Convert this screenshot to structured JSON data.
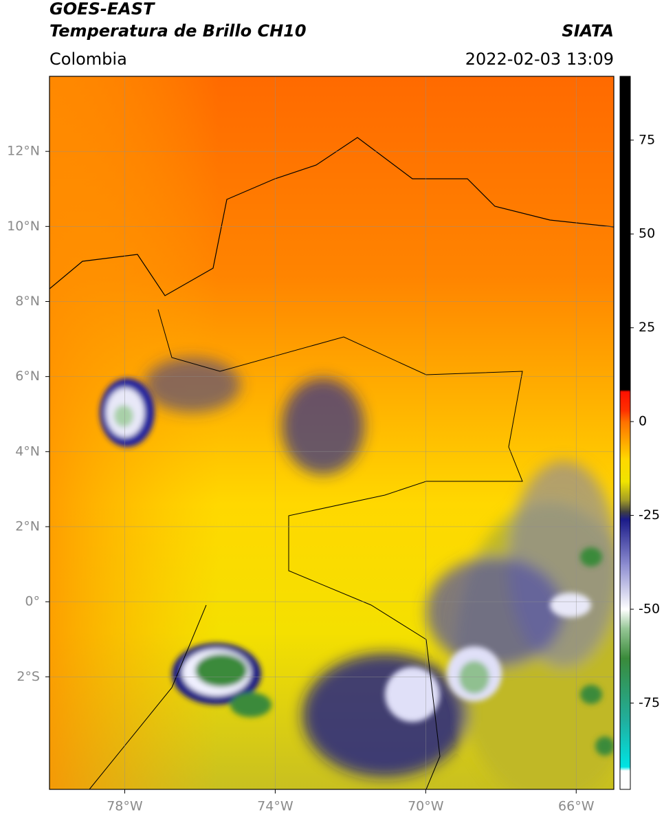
{
  "header": {
    "title_line1": "GOES-EAST",
    "title_line2": "Temperatura de Brillo CH10",
    "source": "SIATA",
    "region": "Colombia",
    "datetime": "2022-02-03 13:09"
  },
  "map": {
    "xlim": [
      -80,
      -65
    ],
    "ylim": [
      -5,
      14
    ],
    "xticks": [
      {
        "value": -78,
        "label": "78°W"
      },
      {
        "value": -74,
        "label": "74°W"
      },
      {
        "value": -70,
        "label": "70°W"
      },
      {
        "value": -66,
        "label": "66°W"
      }
    ],
    "yticks": [
      {
        "value": 12,
        "label": "12°N"
      },
      {
        "value": 10,
        "label": "10°N"
      },
      {
        "value": 8,
        "label": "8°N"
      },
      {
        "value": 6,
        "label": "6°N"
      },
      {
        "value": 4,
        "label": "4°N"
      },
      {
        "value": 2,
        "label": "2°N"
      },
      {
        "value": 0,
        "label": "0°"
      },
      {
        "value": -2,
        "label": "2°S"
      }
    ],
    "grid": true
  },
  "colorbar": {
    "lim": [
      -98,
      92
    ],
    "ticks": [
      75,
      50,
      25,
      0,
      -25,
      -50,
      -75
    ],
    "colormap": [
      {
        "value": 92,
        "color": "#000000"
      },
      {
        "value": 8.5,
        "color": "#000000"
      },
      {
        "value": 8,
        "color": "#ff1000"
      },
      {
        "value": 3,
        "color": "#ff3000"
      },
      {
        "value": 0,
        "color": "#ff7000"
      },
      {
        "value": -10,
        "color": "#ffd800"
      },
      {
        "value": -16,
        "color": "#f0e400"
      },
      {
        "value": -21,
        "color": "#a09a28"
      },
      {
        "value": -24,
        "color": "#404040"
      },
      {
        "value": -26,
        "color": "#1a1a88"
      },
      {
        "value": -38,
        "color": "#8c8cd0"
      },
      {
        "value": -50,
        "color": "#ffffff"
      },
      {
        "value": -55,
        "color": "#98c898"
      },
      {
        "value": -63,
        "color": "#3a8a3a"
      },
      {
        "value": -80,
        "color": "#20b0a0"
      },
      {
        "value": -92,
        "color": "#00e4e4"
      },
      {
        "value": -93,
        "color": "#ffffff"
      },
      {
        "value": -98,
        "color": "#ffffff"
      }
    ]
  }
}
